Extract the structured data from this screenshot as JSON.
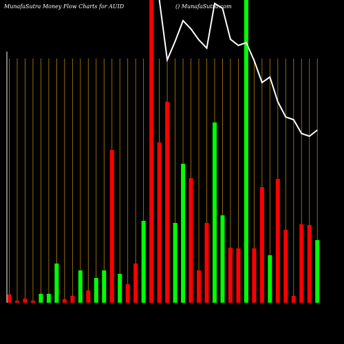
{
  "chart_data": {
    "type": "bar",
    "title": "MunafaSutra  Money Flow  Charts for AUID",
    "subtitle": "() MunafaSutra.com",
    "categories": [
      null,
      null,
      null,
      null,
      null,
      null,
      null,
      null,
      null,
      null,
      null,
      null,
      null,
      null,
      null,
      null,
      null,
      null,
      null,
      null,
      null,
      null,
      null,
      null,
      null,
      null,
      null,
      null,
      null,
      null,
      null,
      null,
      null,
      null,
      null,
      null,
      null,
      null,
      null,
      null
    ],
    "values": [
      12,
      3,
      6,
      3,
      13,
      13,
      57,
      5,
      10,
      47,
      18,
      36,
      47,
      222,
      42,
      27,
      57,
      119,
      440,
      233,
      292,
      116,
      202,
      181,
      47,
      116,
      262,
      127,
      80,
      79,
      440,
      79,
      168,
      69,
      180,
      106,
      10,
      114,
      113,
      91
    ],
    "colors": [
      "#ff0000",
      "#ff0000",
      "#ff0000",
      "#ff0000",
      "#00ff00",
      "#00ff00",
      "#00ff00",
      "#ff0000",
      "#ff0000",
      "#00ff00",
      "#ff0000",
      "#00ff00",
      "#00ff00",
      "#ff0000",
      "#00ff00",
      "#ff0000",
      "#ff0000",
      "#00ff00",
      "#ff0000",
      "#ff0000",
      "#ff0000",
      "#00ff00",
      "#00ff00",
      "#ff0000",
      "#ff0000",
      "#ff0000",
      "#00ff00",
      "#00ff00",
      "#ff0000",
      "#ff0000",
      "#00ff00",
      "#ff0000",
      "#ff0000",
      "#00ff00",
      "#ff0000",
      "#ff0000",
      "#ff0000",
      "#ff0000",
      "#ff0000",
      "#00ff00"
    ],
    "ylim": [
      0,
      440
    ],
    "line": {
      "color": "#ffffff",
      "axis": "y2",
      "values": [
        null,
        null,
        null,
        null,
        null,
        null,
        null,
        null,
        null,
        null,
        null,
        null,
        null,
        null,
        null,
        null,
        null,
        null,
        null,
        440,
        353,
        380,
        410,
        398,
        382,
        370,
        435,
        428,
        383,
        374,
        378,
        352,
        320,
        328,
        292,
        270,
        266,
        246,
        242,
        251
      ]
    },
    "y2lim": [
      0,
      440
    ],
    "grid_color": "#b8860b",
    "background": "#000000"
  }
}
